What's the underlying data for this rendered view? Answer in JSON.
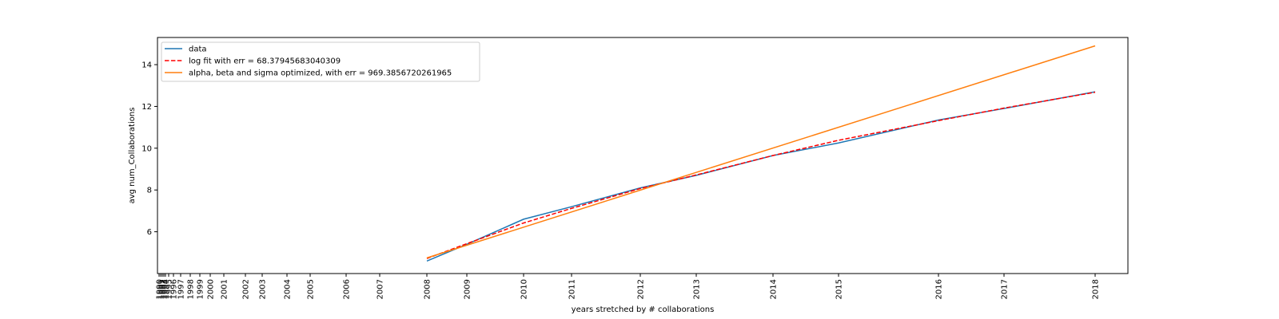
{
  "chart_data": {
    "type": "line",
    "xlabel": "years stretched by # collaborations",
    "ylabel": "avg num_Collaborations",
    "ylim": [
      4.0,
      15.3
    ],
    "y_ticks": [
      6,
      8,
      10,
      12,
      14
    ],
    "x_tick_labels": [
      "1990",
      "1991",
      "1992",
      "1993",
      "1994",
      "1995",
      "1996",
      "1997",
      "1998",
      "1999",
      "2000",
      "2001",
      "2002",
      "2003",
      "2004",
      "2005",
      "2006",
      "2007",
      "2008",
      "2009",
      "2010",
      "2011",
      "2012",
      "2013",
      "2014",
      "2015",
      "2016",
      "2017",
      "2018"
    ],
    "x_axis_note": "x axis is stretched: spacing between years is proportional to number of collaborations",
    "grid": false,
    "legend_position": "top-left",
    "series": [
      {
        "name": "data",
        "color": "#1f77b4",
        "style": "solid",
        "x": [
          "2008",
          "2009",
          "2010",
          "2011",
          "2012",
          "2013",
          "2014",
          "2015",
          "2016",
          "2017",
          "2018"
        ],
        "values": [
          4.6,
          5.4,
          6.6,
          7.2,
          8.1,
          8.7,
          9.65,
          10.25,
          11.35,
          11.9,
          12.7
        ]
      },
      {
        "name": "log fit with err = 68.37945683040309",
        "color": "#ff0000",
        "style": "dashed",
        "x": [
          "2008",
          "2009",
          "2010",
          "2011",
          "2012",
          "2013",
          "2014",
          "2015",
          "2016",
          "2017",
          "2018"
        ],
        "values": [
          4.72,
          5.43,
          6.42,
          7.12,
          8.07,
          8.72,
          9.65,
          10.38,
          11.32,
          11.92,
          12.68
        ]
      },
      {
        "name": "alpha, beta and sigma optimized, with err = 969.3856720261965",
        "color": "#ff7f0e",
        "style": "solid",
        "x": [
          "2008",
          "2018"
        ],
        "values": [
          4.75,
          14.9
        ]
      }
    ]
  }
}
